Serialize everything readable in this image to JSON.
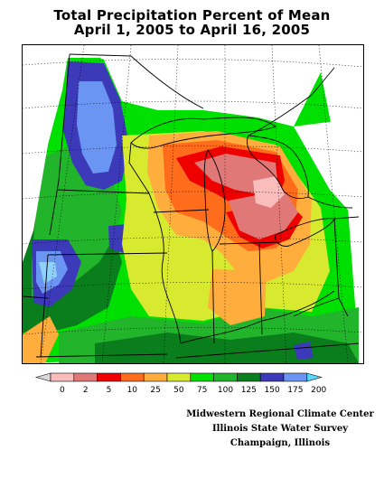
{
  "title_line1": "Total Precipitation Percent of Mean",
  "title_line2": "April 1, 2005 to April 16, 2005",
  "legend": {
    "tick_labels": [
      "0",
      "2",
      "5",
      "10",
      "25",
      "50",
      "75",
      "100",
      "125",
      "150",
      "175",
      "200"
    ],
    "colors": [
      "#d9d9d9",
      "#fbbcbc",
      "#e07878",
      "#ee0000",
      "#ff6c1c",
      "#ffad3c",
      "#d8ea30",
      "#00e000",
      "#22b42a",
      "#0a7d1c",
      "#3c3ab8",
      "#6a95f3",
      "#56d8f8"
    ]
  },
  "credits": [
    "Midwestern Regional Climate Center",
    "Illinois State Water Survey",
    "Champaign, Illinois"
  ]
}
